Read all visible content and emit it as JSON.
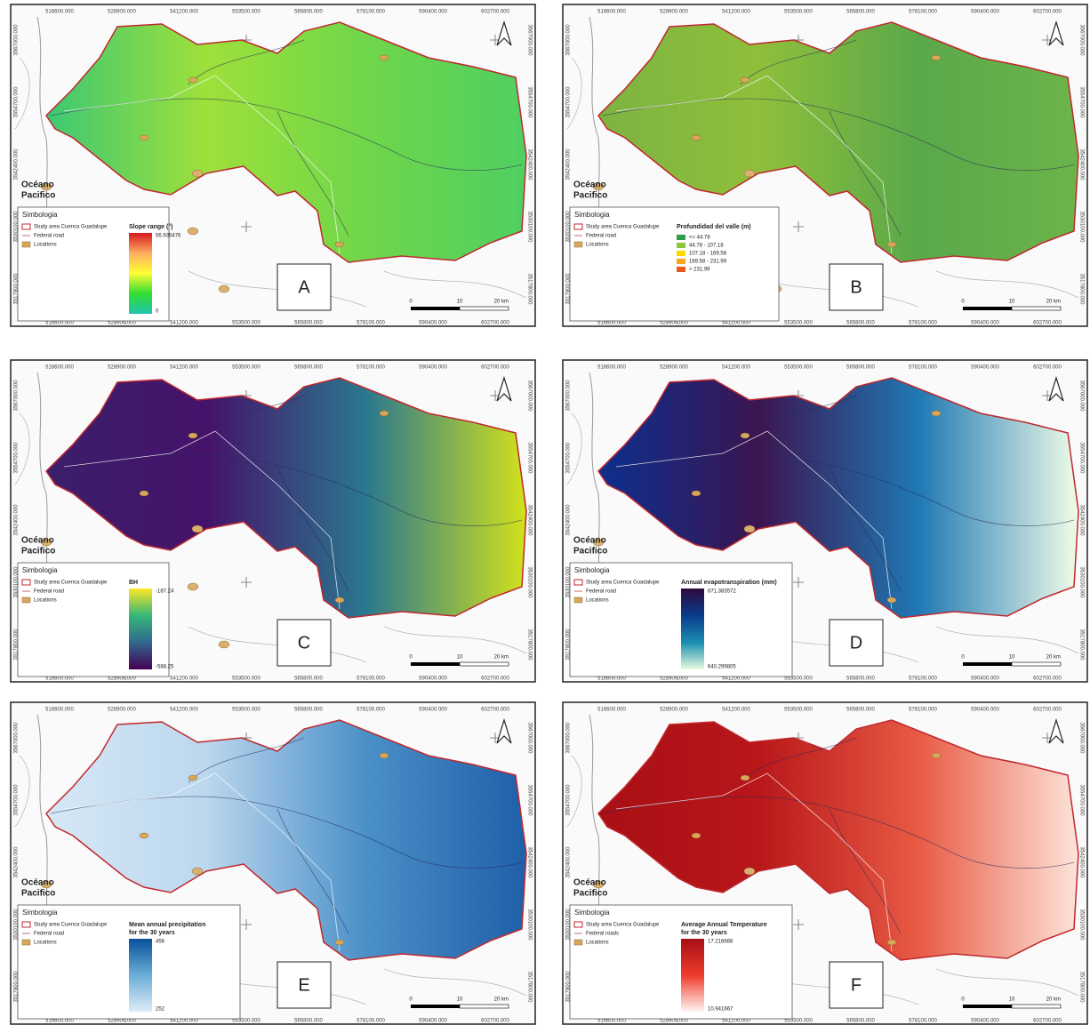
{
  "grid": {
    "x_labels": [
      "516600.000",
      "528900.000",
      "541200.000",
      "553500.000",
      "565800.000",
      "578100.000",
      "590400.000",
      "602700.000"
    ],
    "y_labels": [
      "3567000.000",
      "3554700.000",
      "3542400.000",
      "3530100.000",
      "3517800.000"
    ]
  },
  "ocean_label": [
    "Océano",
    "Pacifico"
  ],
  "legend_header": "Simbologia",
  "scale_labels": [
    "0",
    "10",
    "20 km"
  ],
  "panels": [
    {
      "letter": "A",
      "legend_items": [
        "Study area Cuenca Guadalupe",
        "Federal road",
        "Locations"
      ],
      "legend_title": [
        "Slope range (°)"
      ],
      "max": "56.935476",
      "min": "0",
      "ramp": [
        "#d7191c",
        "#fdae61",
        "#ffff33",
        "#33dd33",
        "#22c4b0"
      ],
      "basin_colors": [
        "#3cc874",
        "#9ee03a",
        "#6fd64a",
        "#4fcf62"
      ]
    },
    {
      "letter": "B",
      "legend_items": [
        "Study area Cuenca Guadalupe",
        "Federal road",
        "Locations"
      ],
      "legend_title": [
        "Profundidad del valle (m)"
      ],
      "classes": [
        {
          "label": "<= 44.78",
          "color": "#2e9e48"
        },
        {
          "label": "44.78 - 107.18",
          "color": "#8cc63f"
        },
        {
          "label": "107.18 - 169.58",
          "color": "#ffd700"
        },
        {
          "label": "169.58 - 231.99",
          "color": "#f5a623"
        },
        {
          "label": "> 231.99",
          "color": "#e8591a"
        }
      ],
      "basin_colors": [
        "#7cb342",
        "#8fbf3a",
        "#5aa84a",
        "#6cb44a"
      ]
    },
    {
      "letter": "C",
      "legend_items": [
        "Study area Cuenca Guadalupe",
        "Federal road",
        "Locations"
      ],
      "legend_title": [
        "BH"
      ],
      "max": "-187.24",
      "min": "-588.25",
      "ramp": [
        "#fde725",
        "#35b779",
        "#31688e",
        "#440154"
      ],
      "basin_colors": [
        "#3b1f6b",
        "#45126a",
        "#2a788e",
        "#d2e21b"
      ]
    },
    {
      "letter": "D",
      "legend_items": [
        "Study area Cuenca Guadalupe",
        "Federal road",
        "Locations"
      ],
      "legend_title": [
        "Annual evapotranspiration (mm)"
      ],
      "max": "871.383572",
      "min": "640.299805",
      "ramp": [
        "#2d0a3b",
        "#0b3b8c",
        "#1a8fb0",
        "#e8fbe0"
      ],
      "basin_colors": [
        "#0d2f8f",
        "#3b1550",
        "#1f78b4",
        "#f0fde8"
      ]
    },
    {
      "letter": "E",
      "legend_items": [
        "Study area Cuenca Guadalupe",
        "Federal road",
        "Locations"
      ],
      "legend_title": [
        "Mean annual precipitation",
        "for the 30 years"
      ],
      "max": "456",
      "min": "252",
      "ramp": [
        "#08519c",
        "#6baed6",
        "#deebf7"
      ],
      "basin_colors": [
        "#d6e8f5",
        "#bcd7ee",
        "#4a90c8",
        "#1f5fa8"
      ]
    },
    {
      "letter": "F",
      "legend_items": [
        "Study area Cuenca Guadalupe",
        "Federal roads",
        "Locations"
      ],
      "legend_title": [
        "Average Annual Temperature",
        "for the 30 years"
      ],
      "max": "17.216668",
      "min": "10.941667",
      "ramp": [
        "#a50f15",
        "#ef3b2c",
        "#fff5f0"
      ],
      "basin_colors": [
        "#a80f14",
        "#b8171a",
        "#e85a44",
        "#fde4da"
      ]
    }
  ]
}
